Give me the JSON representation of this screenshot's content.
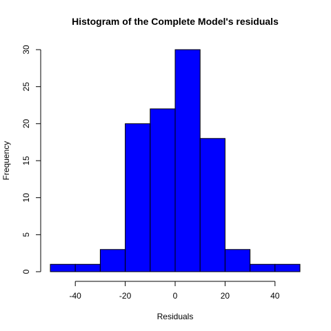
{
  "chart_data": {
    "type": "bar",
    "title": "Histogram of the Complete Model's residuals",
    "xlabel": "Residuals",
    "ylabel": "Frequency",
    "bins": [
      {
        "from": -50,
        "to": -40,
        "count": 1
      },
      {
        "from": -40,
        "to": -30,
        "count": 1
      },
      {
        "from": -30,
        "to": -20,
        "count": 3
      },
      {
        "from": -20,
        "to": -10,
        "count": 20
      },
      {
        "from": -10,
        "to": 0,
        "count": 22
      },
      {
        "from": 0,
        "to": 10,
        "count": 30
      },
      {
        "from": 10,
        "to": 20,
        "count": 18
      },
      {
        "from": 20,
        "to": 30,
        "count": 3
      },
      {
        "from": 30,
        "to": 40,
        "count": 1
      },
      {
        "from": 40,
        "to": 50,
        "count": 1
      }
    ],
    "xlim": [
      -50,
      50
    ],
    "ylim": [
      0,
      30
    ],
    "x_ticks": [
      -40,
      -20,
      0,
      20,
      40
    ],
    "y_ticks": [
      0,
      5,
      10,
      15,
      20,
      25,
      30
    ],
    "bar_color": "#0000ff",
    "grid": false,
    "legend": "none"
  }
}
